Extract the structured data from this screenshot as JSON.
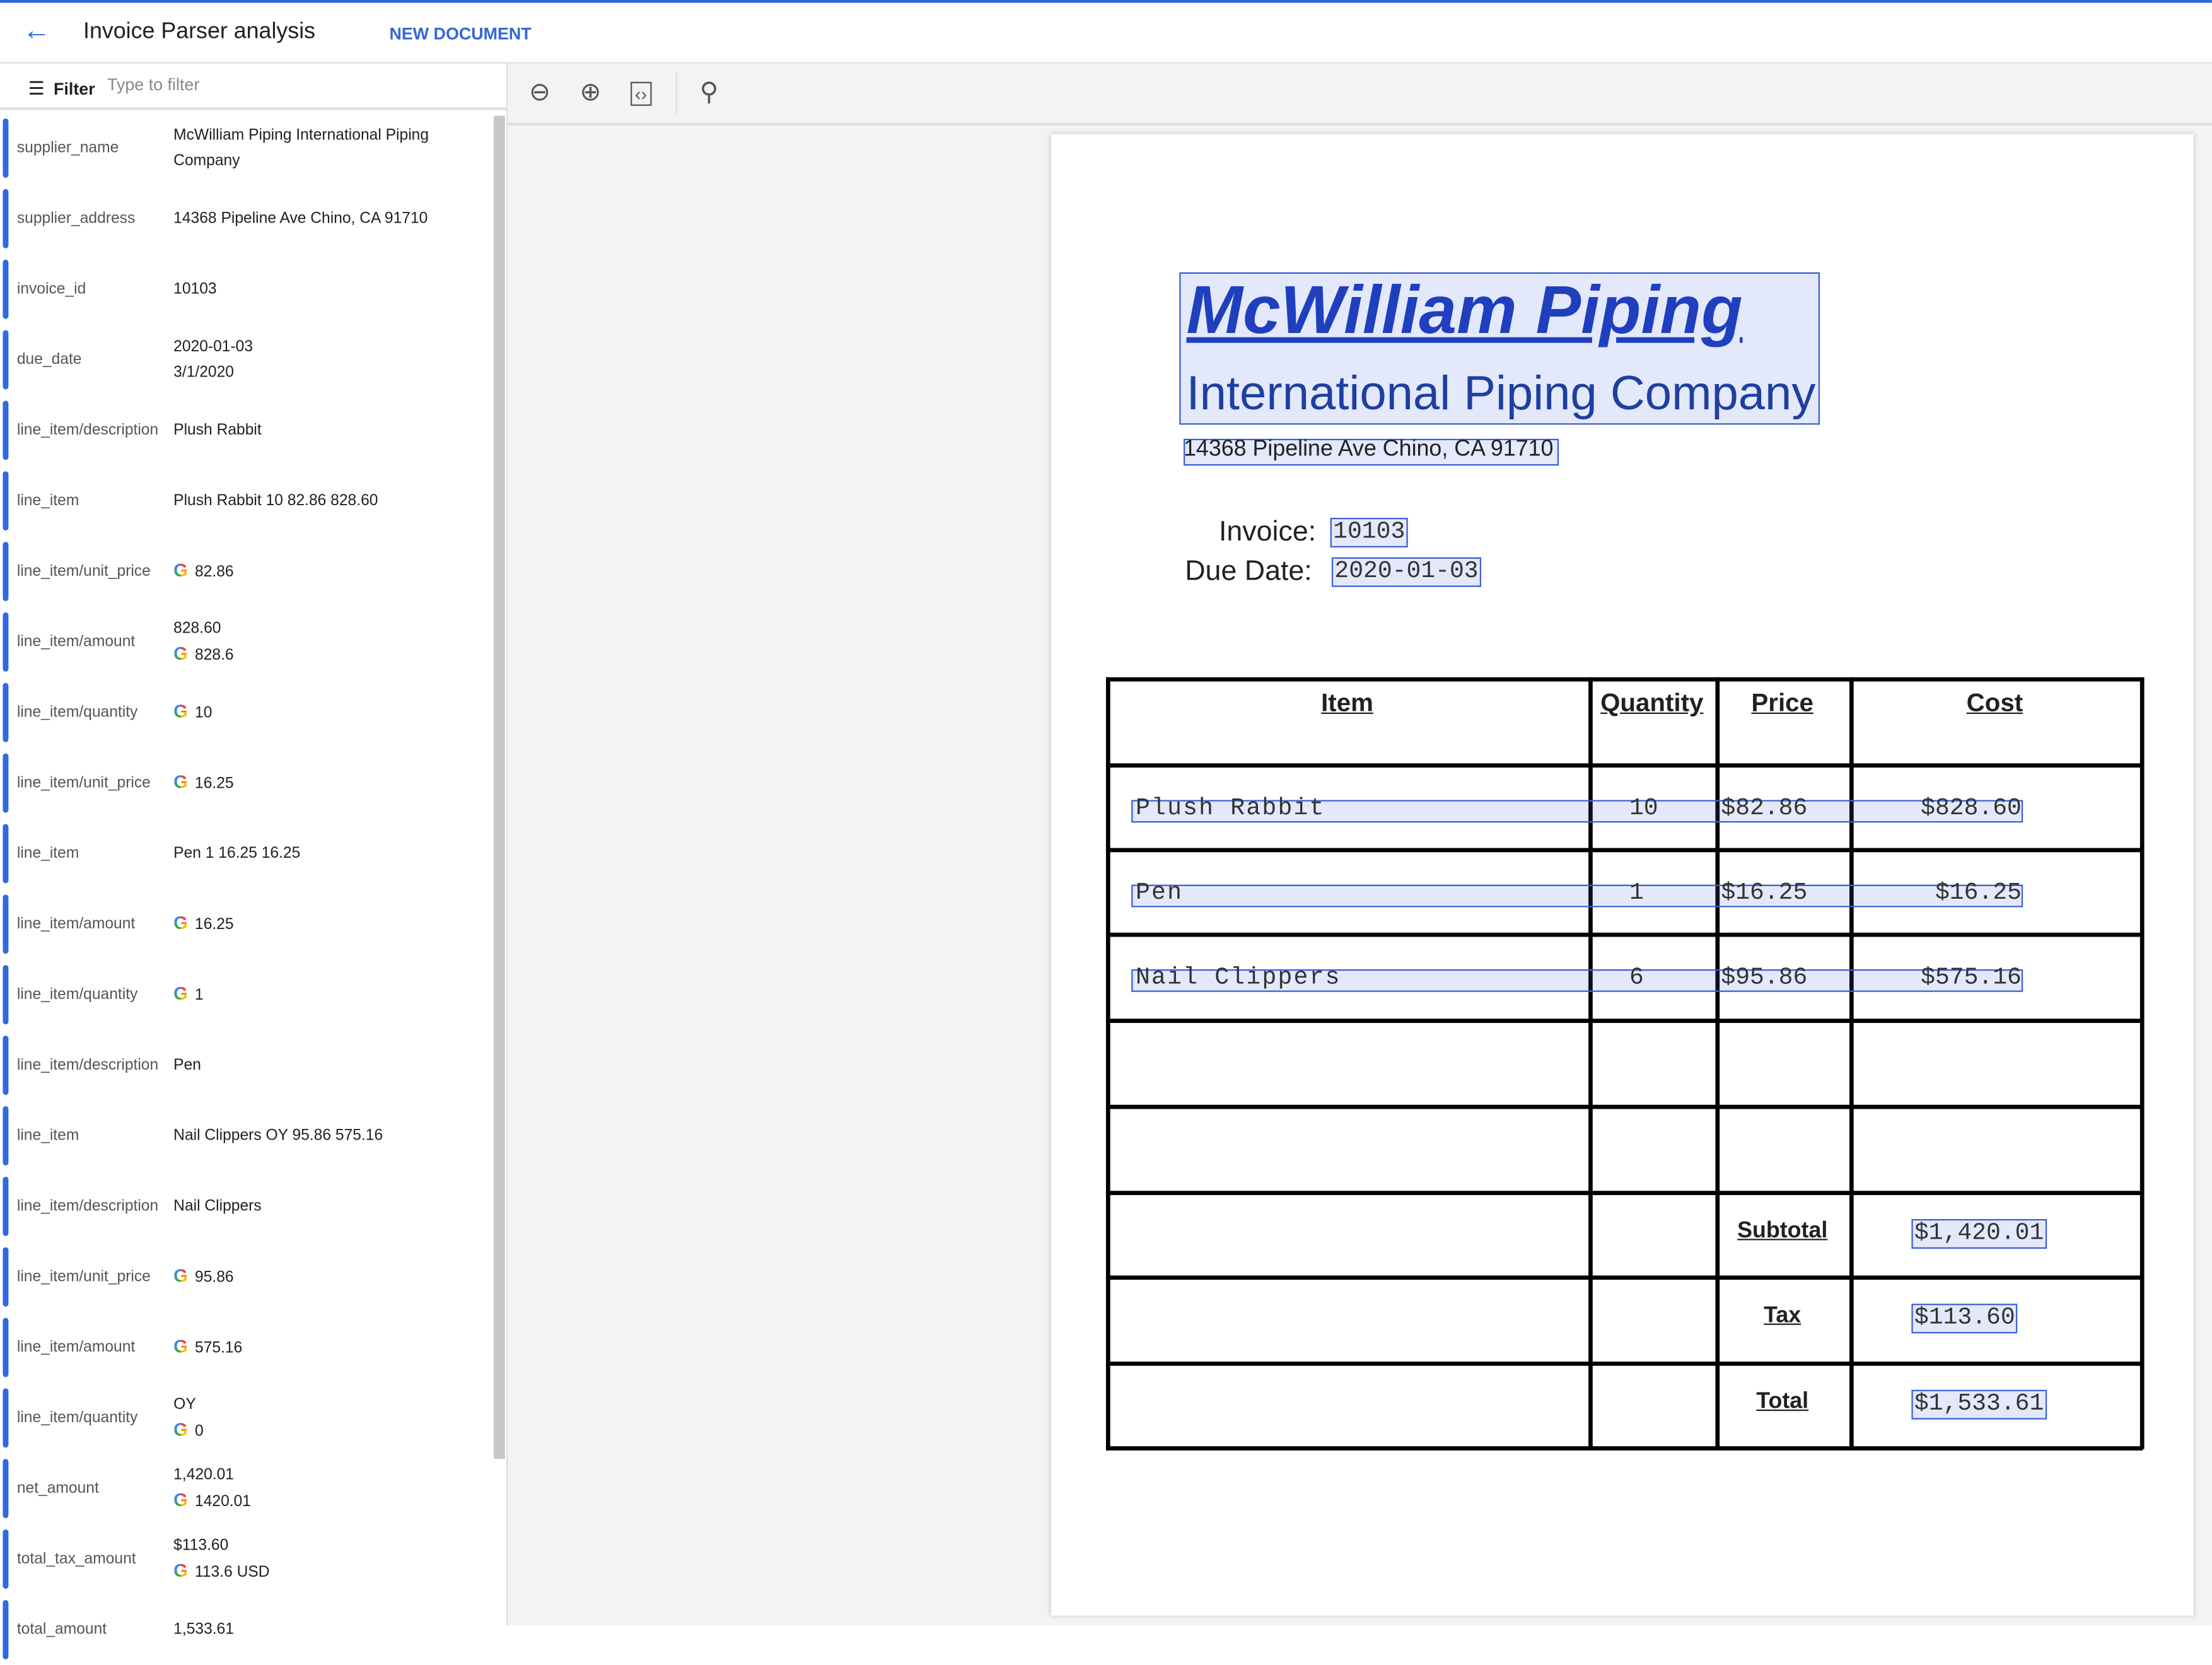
{
  "header": {
    "title": "Invoice Parser analysis",
    "new_document": "NEW DOCUMENT"
  },
  "filter": {
    "label": "Filter",
    "placeholder": "Type to filter"
  },
  "entities": [
    {
      "key": "supplier_name",
      "values": [
        {
          "text": "McWilliam Piping International Piping Company"
        }
      ]
    },
    {
      "key": "supplier_address",
      "values": [
        {
          "text": "14368 Pipeline Ave Chino, CA 91710"
        }
      ]
    },
    {
      "key": "invoice_id",
      "values": [
        {
          "text": "10103"
        }
      ]
    },
    {
      "key": "due_date",
      "values": [
        {
          "text": "2020-01-03"
        },
        {
          "text": "3/1/2020"
        }
      ]
    },
    {
      "key": "line_item/description",
      "values": [
        {
          "text": "Plush Rabbit"
        }
      ]
    },
    {
      "key": "line_item",
      "values": [
        {
          "text": "Plush Rabbit 10 82.86 828.60"
        }
      ]
    },
    {
      "key": "line_item/unit_price",
      "values": [
        {
          "text": "82.86",
          "google": true
        }
      ]
    },
    {
      "key": "line_item/amount",
      "values": [
        {
          "text": "828.60"
        },
        {
          "text": "828.6",
          "google": true
        }
      ]
    },
    {
      "key": "line_item/quantity",
      "values": [
        {
          "text": "10",
          "google": true
        }
      ]
    },
    {
      "key": "line_item/unit_price",
      "values": [
        {
          "text": "16.25",
          "google": true
        }
      ]
    },
    {
      "key": "line_item",
      "values": [
        {
          "text": "Pen 1 16.25 16.25"
        }
      ]
    },
    {
      "key": "line_item/amount",
      "values": [
        {
          "text": "16.25",
          "google": true
        }
      ]
    },
    {
      "key": "line_item/quantity",
      "values": [
        {
          "text": "1",
          "google": true
        }
      ]
    },
    {
      "key": "line_item/description",
      "values": [
        {
          "text": "Pen"
        }
      ]
    },
    {
      "key": "line_item",
      "values": [
        {
          "text": "Nail Clippers OY 95.86 575.16"
        }
      ]
    },
    {
      "key": "line_item/description",
      "values": [
        {
          "text": "Nail Clippers"
        }
      ]
    },
    {
      "key": "line_item/unit_price",
      "values": [
        {
          "text": "95.86",
          "google": true
        }
      ]
    },
    {
      "key": "line_item/amount",
      "values": [
        {
          "text": "575.16",
          "google": true
        }
      ]
    },
    {
      "key": "line_item/quantity",
      "values": [
        {
          "text": "OY"
        },
        {
          "text": "0",
          "google": true
        }
      ]
    },
    {
      "key": "net_amount",
      "values": [
        {
          "text": "1,420.01"
        },
        {
          "text": "1420.01",
          "google": true
        }
      ]
    },
    {
      "key": "total_tax_amount",
      "values": [
        {
          "text": "$113.60"
        },
        {
          "text": "113.6 USD",
          "google": true
        }
      ]
    },
    {
      "key": "total_amount",
      "values": [
        {
          "text": "1,533.61"
        }
      ]
    }
  ],
  "document": {
    "company": "McWilliam Piping",
    "company_sub": "International Piping Company",
    "address": "14368 Pipeline Ave Chino, CA 91710",
    "invoice_label": "Invoice:",
    "invoice_value": "10103",
    "due_label": "Due Date:",
    "due_value": "2020-01-03",
    "headers": [
      "Item",
      "Quantity",
      "Price",
      "Cost"
    ],
    "items": [
      {
        "item": "Plush Rabbit",
        "qty": "10",
        "price": "$82.86",
        "cost": "$828.60"
      },
      {
        "item": "Pen",
        "qty": "1",
        "price": "$16.25",
        "cost": "$16.25"
      },
      {
        "item": "Nail Clippers",
        "qty": "6",
        "price": "$95.86",
        "cost": "$575.16"
      }
    ],
    "subtotal_label": "Subtotal",
    "subtotal": "$1,420.01",
    "tax_label": "Tax",
    "tax": "$113.60",
    "total_label": "Total",
    "total": "$1,533.61"
  },
  "colors": {
    "accent": "#3367d6",
    "highlight": "#3b5fd6"
  }
}
